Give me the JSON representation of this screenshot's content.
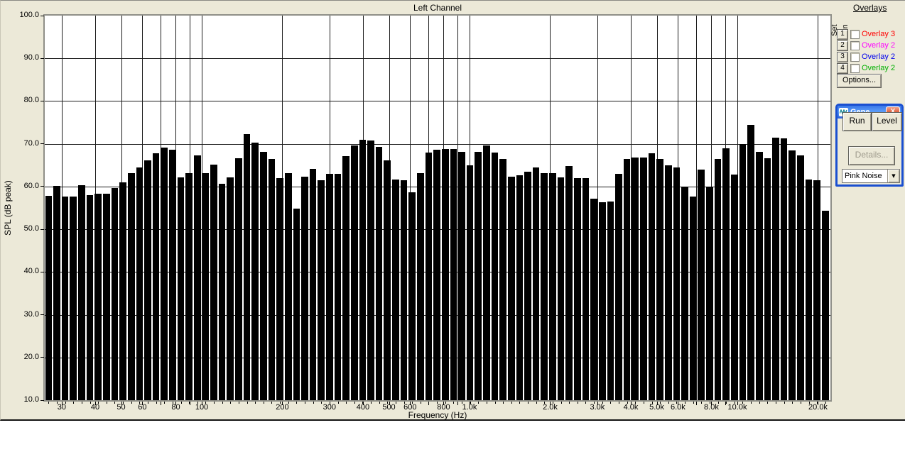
{
  "chart_data": {
    "type": "bar",
    "title": "Left Channel",
    "xlabel": "Frequency (Hz)",
    "ylabel": "SPL (dB peak)",
    "x_scale": "log",
    "xlim_hz": [
      26,
      22300
    ],
    "ylim": [
      10,
      100
    ],
    "grid": true,
    "bar_color": "#000000",
    "plot_background": "#ffffff",
    "panel_background": "#ece9d8",
    "y_ticks": [
      {
        "v": 100,
        "label": "100.0"
      },
      {
        "v": 90,
        "label": "90.0"
      },
      {
        "v": 80,
        "label": "80.0"
      },
      {
        "v": 70,
        "label": "70.0"
      },
      {
        "v": 60,
        "label": "60.0"
      },
      {
        "v": 50,
        "label": "50.0"
      },
      {
        "v": 40,
        "label": "40.0"
      },
      {
        "v": 30,
        "label": "30.0"
      },
      {
        "v": 20,
        "label": "20.0"
      },
      {
        "v": 10,
        "label": "10.0"
      }
    ],
    "x_tick_labels": [
      {
        "f": 30,
        "label": "30"
      },
      {
        "f": 40,
        "label": "40"
      },
      {
        "f": 50,
        "label": "50"
      },
      {
        "f": 60,
        "label": "60"
      },
      {
        "f": 80,
        "label": "80"
      },
      {
        "f": 100,
        "label": "100"
      },
      {
        "f": 200,
        "label": "200"
      },
      {
        "f": 300,
        "label": "300"
      },
      {
        "f": 400,
        "label": "400"
      },
      {
        "f": 500,
        "label": "500"
      },
      {
        "f": 600,
        "label": "600"
      },
      {
        "f": 800,
        "label": "800"
      },
      {
        "f": 1000,
        "label": "1.0k"
      },
      {
        "f": 2000,
        "label": "2.0k"
      },
      {
        "f": 3000,
        "label": "3.0k"
      },
      {
        "f": 4000,
        "label": "4.0k"
      },
      {
        "f": 5000,
        "label": "5.0k"
      },
      {
        "f": 6000,
        "label": "6.0k"
      },
      {
        "f": 8000,
        "label": "8.0k"
      },
      {
        "f": 10000,
        "label": "10.0k"
      },
      {
        "f": 20000,
        "label": "20.0k"
      }
    ],
    "x_gridline_freqs": [
      30,
      40,
      50,
      60,
      70,
      80,
      90,
      100,
      200,
      300,
      400,
      500,
      600,
      700,
      800,
      900,
      1000,
      2000,
      3000,
      4000,
      5000,
      6000,
      7000,
      8000,
      9000,
      10000,
      20000
    ],
    "bands": 95,
    "values_db": [
      57.8,
      60.1,
      57.7,
      57.7,
      60.3,
      58.0,
      58.4,
      58.4,
      59.6,
      60.9,
      63.2,
      64.5,
      66.1,
      67.8,
      69.1,
      68.6,
      62.1,
      63.2,
      67.3,
      63.2,
      65.1,
      60.6,
      62.2,
      66.6,
      72.3,
      70.2,
      68.1,
      66.5,
      62.0,
      63.1,
      54.9,
      62.3,
      64.2,
      61.4,
      62.9,
      63.0,
      67.1,
      69.6,
      70.9,
      70.7,
      69.3,
      66.1,
      61.6,
      61.4,
      58.6,
      63.1,
      68.0,
      68.6,
      68.7,
      68.8,
      68.1,
      65.0,
      68.2,
      69.6,
      68.0,
      66.5,
      62.3,
      62.6,
      63.5,
      64.4,
      63.2,
      63.2,
      62.2,
      64.8,
      61.9,
      61.9,
      57.2,
      56.4,
      56.5,
      63.0,
      66.5,
      66.8,
      66.8,
      67.8,
      66.4,
      65.0,
      64.5,
      60.0,
      57.6,
      63.9,
      59.9,
      66.5,
      69.0,
      62.8,
      69.9,
      74.5,
      68.2,
      66.7,
      71.4,
      71.2,
      68.5,
      67.3,
      61.7,
      61.5,
      54.3
    ]
  },
  "overlays_panel": {
    "title": "Overlays",
    "set_label": "Set",
    "on_label": "On",
    "rows": [
      {
        "button_label": "1",
        "label": "Overlay 3",
        "color": "#ff0000",
        "checked": false
      },
      {
        "button_label": "2",
        "label": "Overlay 2",
        "color": "#ff00ff",
        "checked": false
      },
      {
        "button_label": "3",
        "label": "Overlay 2",
        "color": "#0000ee",
        "checked": false
      },
      {
        "button_label": "4",
        "label": "Overlay 2",
        "color": "#00b000",
        "checked": false
      }
    ],
    "options_label": "Options..."
  },
  "generator_window": {
    "title": "Gene...",
    "close_label": "X",
    "run_label": "Run",
    "level_label": "Level",
    "details_label": "Details...",
    "details_enabled": false,
    "signal_value": "Pink Noise",
    "arrow_glyph": "▼"
  }
}
